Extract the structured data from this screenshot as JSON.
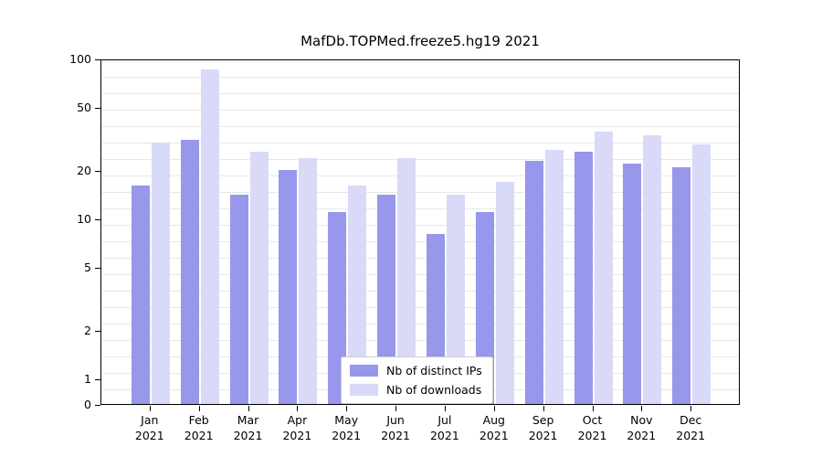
{
  "title": "MafDb.TOPMed.freeze5.hg19 2021",
  "chart_data": {
    "type": "bar",
    "title": "MafDb.TOPMed.freeze5.hg19 2021",
    "x_months": [
      "Jan",
      "Feb",
      "Mar",
      "Apr",
      "May",
      "Jun",
      "Jul",
      "Aug",
      "Sep",
      "Oct",
      "Nov",
      "Dec"
    ],
    "x_year": "2021",
    "series": [
      {
        "name": "Nb of distinct IPs",
        "color": "#9797ec",
        "values": [
          16,
          31,
          14,
          20,
          11,
          14,
          8,
          11,
          23,
          26,
          22,
          21
        ]
      },
      {
        "name": "Nb of downloads",
        "color": "#d9d9f8",
        "values": [
          30,
          85,
          26,
          24,
          16,
          24,
          14,
          17,
          27,
          35,
          33,
          29
        ]
      }
    ],
    "yticks": [
      0,
      1,
      2,
      5,
      10,
      20,
      50,
      100
    ],
    "ylim": [
      0,
      100
    ],
    "yscale": "log-with-zero-baseline",
    "grid": "horizontal-light",
    "legend_position": "bottom-center-inside",
    "xlabel": "",
    "ylabel": ""
  }
}
